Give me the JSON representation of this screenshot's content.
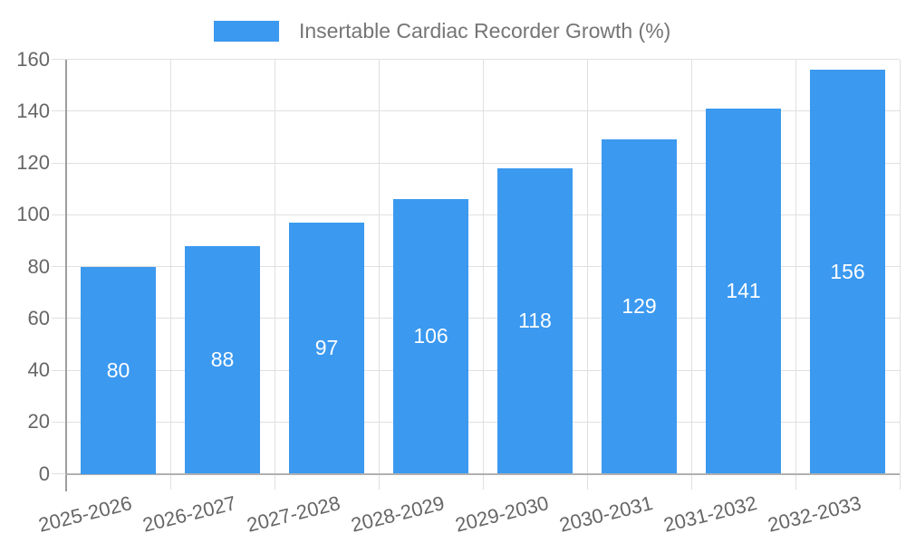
{
  "chart_data": {
    "type": "bar",
    "legend": "Insertable Cardiac Recorder Growth (%)",
    "legend_position": "top",
    "categories": [
      "2025-2026",
      "2026-2027",
      "2027-2028",
      "2028-2029",
      "2029-2030",
      "2030-2031",
      "2031-2032",
      "2032-2033"
    ],
    "values": [
      80,
      88,
      97,
      106,
      118,
      129,
      141,
      156
    ],
    "xlabel": "",
    "ylabel": "",
    "ylim": [
      0,
      160
    ],
    "yticks": [
      0,
      20,
      40,
      60,
      80,
      100,
      120,
      140,
      160
    ],
    "grid": true,
    "value_labels": "inside-center",
    "colors": {
      "bar": "#3B99F0",
      "value_label": "#FFFFFF",
      "legend_text": "#757575",
      "axis_text": "#666666",
      "gridline": "#E0E0E0",
      "axis_line": "#9E9E9E",
      "baseline": "#B0B0B0"
    }
  }
}
